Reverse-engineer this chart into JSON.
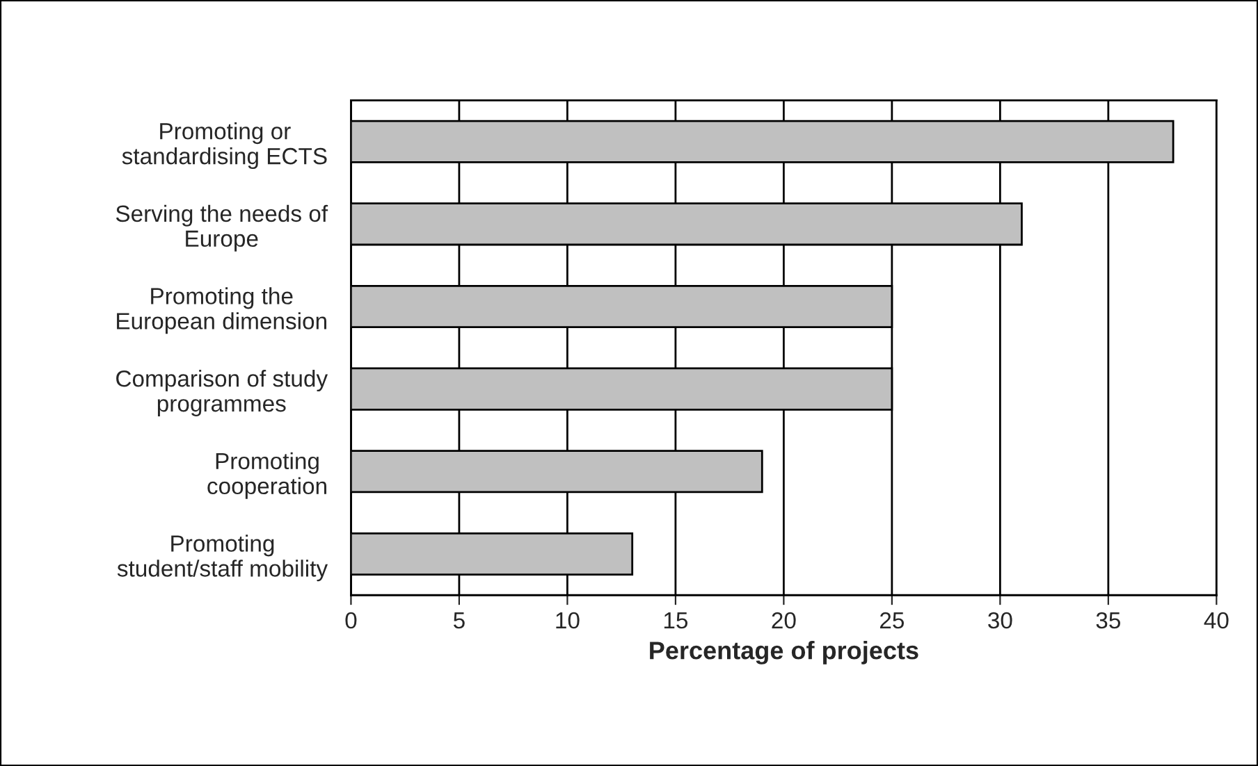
{
  "chart_data": {
    "type": "bar",
    "orientation": "horizontal",
    "xlabel": "Percentage of projects",
    "categories": [
      "Promoting or\nstandardising ECTS",
      "Serving the needs of\nEurope",
      "Promoting the\nEuropean dimension",
      "Comparison of study\nprogrammes",
      "Promoting\ncooperation",
      "Promoting\nstudent/staff mobility"
    ],
    "values": [
      38,
      31,
      25,
      25,
      19,
      13
    ],
    "color": "#c0c0c0",
    "xlim": [
      0,
      40
    ],
    "xticks": [
      0,
      5,
      10,
      15,
      20,
      25,
      30,
      35,
      40
    ],
    "grid": "x",
    "legend": false
  }
}
